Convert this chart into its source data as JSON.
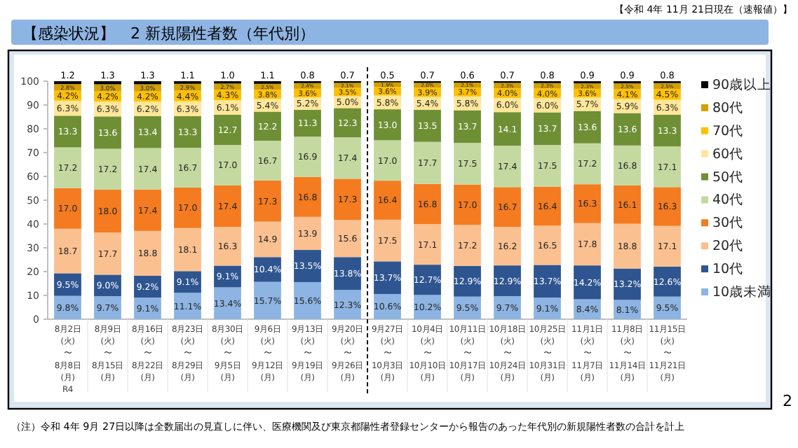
{
  "chart_data": {
    "type": "bar",
    "stacked": true,
    "title": "【感染状況】　2 新規陽性者数（年代別）",
    "subtitle": "【令和 4年 11月 21日現在（速報値）】",
    "annotations": [
      "（注）令和 4年 9月 27日以降は全数届出の見直しに伴い、医療機関及び東京都陽性者登録センターから報告のあった年代別の新規陽性者数の合計を計上",
      "2"
    ],
    "categories": [
      "8月2日\n(火)\n〜\n8月8日\n(月)\nR4",
      "8月9日\n(火)\n〜\n8月15日\n(月)",
      "8月16日\n(火)\n〜\n8月22日\n(月)",
      "8月23日\n(火)\n〜\n8月29日\n(月)",
      "8月30日\n(火)\n〜\n9月5日\n(月)",
      "9月6日\n(火)\n〜\n9月12日\n(月)",
      "9月13日\n(火)\n〜\n9月19日\n(月)",
      "9月20日\n(火)\n〜\n9月26日\n(月)",
      "9月27日\n(火)\n〜\n10月3日\n(月)",
      "10月4日\n(火)\n〜\n10月10日\n(月)",
      "10月11日\n(火)\n〜\n10月17日\n(月)",
      "10月18日\n(火)\n〜\n10月24日\n(月)",
      "10月25日\n(火)\n〜\n10月31日\n(月)",
      "11月1日\n(火)\n〜\n11月7日\n(月)",
      "11月8日\n(火)\n〜\n11月14日\n(月)",
      "11月15日\n(火)\n〜\n11月21日\n(月)"
    ],
    "ylim": [
      0,
      100
    ],
    "yticks": [
      0,
      10,
      20,
      30,
      40,
      50,
      60,
      70,
      80,
      90,
      100
    ],
    "legend": "right",
    "series": [
      {
        "name": "10歳未満",
        "color": "#8db4e2",
        "values": [
          9.8,
          9.7,
          9.1,
          11.1,
          13.4,
          15.7,
          15.6,
          12.3,
          10.6,
          10.2,
          9.5,
          9.7,
          9.1,
          8.4,
          8.1,
          9.5
        ],
        "value_labels": [
          "9.8%",
          "9.7%",
          "9.1%",
          "11.1%",
          "13.4%",
          "15.7%",
          "15.6%",
          "12.3%",
          "10.6%",
          "10.2%",
          "9.5%",
          "9.7%",
          "9.1%",
          "8.4%",
          "8.1%",
          "9.5%"
        ]
      },
      {
        "name": "10代",
        "color": "#2e5590",
        "values": [
          9.5,
          9.0,
          9.2,
          9.1,
          9.1,
          10.4,
          13.5,
          13.8,
          13.7,
          12.7,
          12.9,
          12.9,
          13.7,
          14.2,
          13.2,
          12.6
        ],
        "value_labels": [
          "9.5%",
          "9.0%",
          "9.2%",
          "9.1%",
          "9.1%",
          "10.4%",
          "13.5%",
          "13.8%",
          "13.7%",
          "12.7%",
          "12.9%",
          "12.9%",
          "13.7%",
          "14.2%",
          "13.2%",
          "12.6%"
        ]
      },
      {
        "name": "20代",
        "color": "#fac090",
        "values": [
          18.7,
          17.7,
          18.8,
          18.1,
          16.3,
          14.9,
          13.9,
          15.6,
          17.5,
          17.1,
          17.2,
          16.2,
          16.5,
          17.8,
          18.8,
          17.1
        ],
        "value_labels": [
          "18.7",
          "17.7",
          "18.8",
          "18.1",
          "16.3",
          "14.9",
          "13.9",
          "15.6",
          "17.5",
          "17.1",
          "17.2",
          "16.2",
          "16.5",
          "17.8",
          "18.8",
          "17.1"
        ]
      },
      {
        "name": "30代",
        "color": "#f47b20",
        "values": [
          17.0,
          18.0,
          17.4,
          17.0,
          17.4,
          17.3,
          16.8,
          17.3,
          16.4,
          16.8,
          17.0,
          16.7,
          16.4,
          16.3,
          16.1,
          16.3
        ],
        "value_labels": [
          "17.0",
          "18.0",
          "17.4",
          "17.0",
          "17.4",
          "17.3",
          "16.8",
          "17.3",
          "16.4",
          "16.8",
          "17.0",
          "16.7",
          "16.4",
          "16.3",
          "16.1",
          "16.3"
        ]
      },
      {
        "name": "40代",
        "color": "#c4d9a0",
        "values": [
          17.2,
          17.2,
          17.4,
          16.7,
          17.0,
          16.7,
          16.9,
          17.4,
          17.0,
          17.7,
          17.5,
          17.4,
          17.5,
          17.2,
          16.8,
          17.1
        ],
        "value_labels": [
          "17.2",
          "17.2",
          "17.4",
          "16.7",
          "17.0",
          "16.7",
          "16.9",
          "17.4",
          "17.0",
          "17.7",
          "17.5",
          "17.4",
          "17.5",
          "17.2",
          "16.8",
          "17.1"
        ]
      },
      {
        "name": "50代",
        "color": "#6f8f35",
        "values": [
          13.3,
          13.6,
          13.4,
          13.3,
          12.7,
          12.2,
          11.3,
          12.3,
          13.0,
          13.5,
          13.7,
          14.1,
          13.7,
          13.6,
          13.6,
          13.3
        ],
        "value_labels": [
          "13.3",
          "13.6",
          "13.4",
          "13.3",
          "12.7",
          "12.2",
          "11.3",
          "12.3",
          "13.0",
          "13.5",
          "13.7",
          "14.1",
          "13.7",
          "13.6",
          "13.6",
          "13.3"
        ]
      },
      {
        "name": "60代",
        "color": "#ffe699",
        "values": [
          6.3,
          6.3,
          6.2,
          6.3,
          6.1,
          5.4,
          5.2,
          5.0,
          5.8,
          5.4,
          5.8,
          6.0,
          6.0,
          5.7,
          5.9,
          6.3
        ],
        "value_labels": [
          "6.3%",
          "6.3%",
          "6.2%",
          "6.3%",
          "6.1%",
          "5.4%",
          "5.2%",
          "5.0%",
          "5.8%",
          "5.4%",
          "5.8%",
          "6.0%",
          "6.0%",
          "5.7%",
          "5.9%",
          "6.3%"
        ]
      },
      {
        "name": "70代",
        "color": "#ffc000",
        "values": [
          4.2,
          4.2,
          4.2,
          4.4,
          4.3,
          3.8,
          3.6,
          3.5,
          3.6,
          3.9,
          3.7,
          4.0,
          4.0,
          3.6,
          4.1,
          4.5
        ],
        "value_labels": [
          "4.2%",
          "4.2%",
          "4.2%",
          "4.4%",
          "4.3%",
          "3.8%",
          "3.6%",
          "3.5%",
          "3.6%",
          "3.9%",
          "3.7%",
          "4.0%",
          "4.0%",
          "3.6%",
          "4.1%",
          "4.5%"
        ]
      },
      {
        "name": "80代",
        "color": "#d4a000",
        "values": [
          2.8,
          3.0,
          3.0,
          2.9,
          2.7,
          2.5,
          2.4,
          2.1,
          1.9,
          2.0,
          2.1,
          2.3,
          2.3,
          2.3,
          2.5,
          2.5
        ],
        "value_labels": [
          "2.8%",
          "3.0%",
          "3.0%",
          "2.9%",
          "2.7%",
          "2.5%",
          "2.4%",
          "2.1%",
          "1.9%",
          "2.0%",
          "2.1%",
          "2.3%",
          "2.3%",
          "2.3%",
          "2.5%",
          "2.5%"
        ]
      },
      {
        "name": "90歳以上",
        "color": "#000000",
        "values": [
          1.2,
          1.3,
          1.3,
          1.1,
          1.0,
          1.1,
          0.8,
          0.7,
          0.5,
          0.7,
          0.6,
          0.7,
          0.8,
          0.9,
          0.9,
          0.8
        ],
        "value_labels": [
          "1.2",
          "1.3",
          "1.3",
          "1.1",
          "1.0",
          "1.1",
          "0.8",
          "0.7",
          "0.5",
          "0.7",
          "0.6",
          "0.7",
          "0.8",
          "0.9",
          "0.9",
          "0.8"
        ]
      }
    ]
  }
}
